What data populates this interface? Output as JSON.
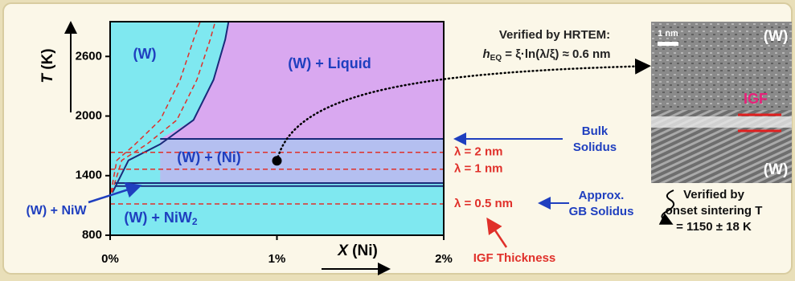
{
  "chart_data": {
    "type": "phase-diagram",
    "ylabel": {
      "var": "T",
      "unit": " (K)"
    },
    "xlabel": {
      "var": "X",
      "unit": " (Ni)"
    },
    "xlim": [
      0,
      2
    ],
    "ylim": [
      800,
      2950
    ],
    "xticks": [
      {
        "value": 0,
        "label": "0%"
      },
      {
        "value": 1,
        "label": "1%"
      },
      {
        "value": 2,
        "label": "2%"
      }
    ],
    "yticks": [
      800,
      1400,
      2000,
      2600
    ],
    "series": [
      {
        "color": "#1a2a7a",
        "x": [
          0.014,
          0.11,
          0.3,
          0.5,
          0.62,
          0.69,
          0.71
        ],
        "values": [
          1230,
          1554,
          1716,
          1960,
          2365,
          2770,
          2950
        ]
      },
      {
        "color": "#e0302a",
        "dashed": true,
        "x": [
          0.005,
          0.04,
          0.15,
          0.3,
          0.42,
          0.5,
          0.54
        ],
        "values": [
          1230,
          1554,
          1716,
          1960,
          2365,
          2770,
          2950
        ]
      },
      {
        "color": "#e0302a",
        "dashed": true,
        "x": [
          0.01,
          0.07,
          0.22,
          0.4,
          0.52,
          0.6,
          0.63
        ],
        "values": [
          1230,
          1554,
          1716,
          1960,
          2365,
          2770,
          2950
        ]
      },
      {
        "color": "#1a2a7a",
        "x": [
          0.3,
          2
        ],
        "values": [
          1770,
          1770
        ]
      },
      {
        "color": "#e0302a",
        "dashed": true,
        "label": "λ = 2 nm",
        "x": [
          0,
          2
        ],
        "values": [
          1635,
          1635
        ]
      },
      {
        "color": "#e0302a",
        "dashed": true,
        "label": "λ = 1 nm",
        "x": [
          0,
          2
        ],
        "values": [
          1465,
          1465
        ]
      },
      {
        "color": "#1a2a7a",
        "x": [
          0.03,
          2
        ],
        "values": [
          1325,
          1325
        ]
      },
      {
        "color": "#1a2a7a",
        "x": [
          0.03,
          2
        ],
        "values": [
          1295,
          1295
        ]
      },
      {
        "color": "#e0302a",
        "dashed": true,
        "label": "λ = 0.5 nm",
        "x": [
          0,
          2
        ],
        "values": [
          1115,
          1115
        ]
      }
    ],
    "point": {
      "x": 1,
      "value": 1550
    },
    "regions": [
      "(W)",
      "(W) + Liquid",
      "(W) + (Ni)",
      {
        "text": "(W) + NiW",
        "sub": "2"
      }
    ],
    "niw_label": "(W) + NiW",
    "hrtem": {
      "title": "Verified by HRTEM:",
      "h": "h",
      "sub": "EQ",
      "formula": " = ξ·ln(λ/ξ) ≈ 0.6 nm",
      "scale": "1 nm",
      "top": "(W)",
      "igf": "IGF",
      "bottom": "(W)"
    },
    "bulk": [
      "Bulk",
      "Solidus"
    ],
    "gb": [
      "Approx.",
      "GB Solidus"
    ],
    "verified": [
      "Verified by",
      "onset sintering T",
      "= 1150 ± 18 K"
    ],
    "igf_thickness": "IGF Thickness"
  }
}
